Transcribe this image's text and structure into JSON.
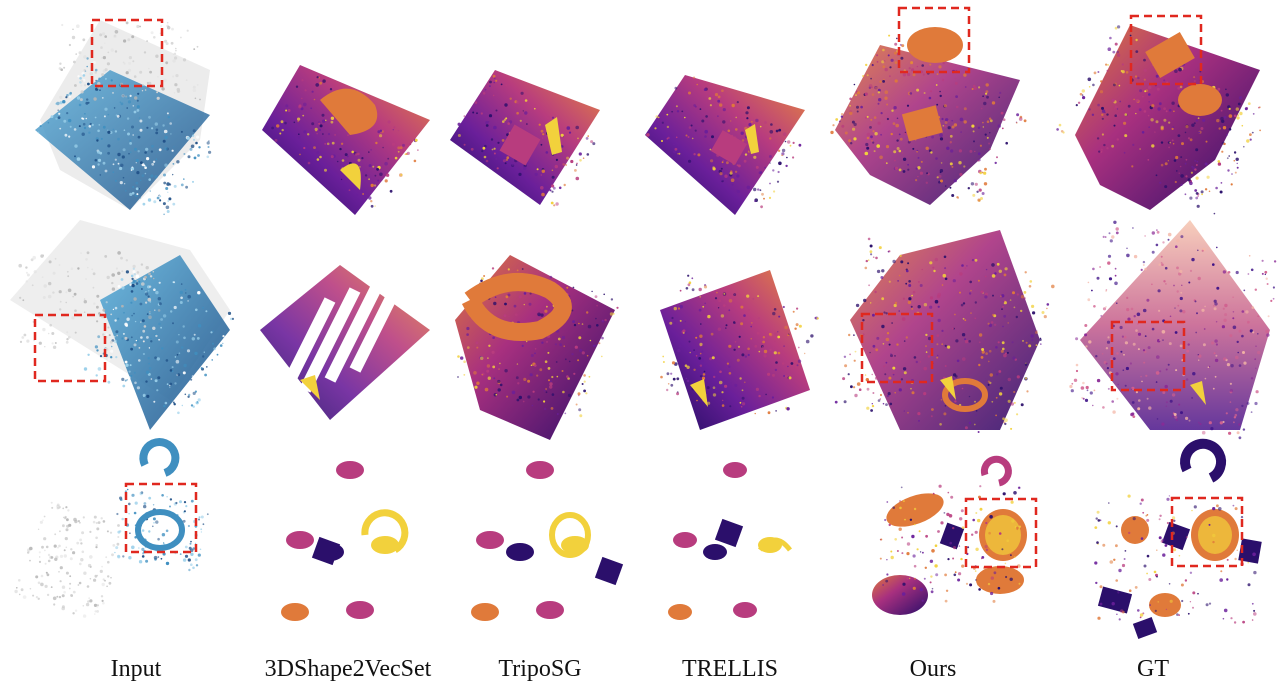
{
  "figure": {
    "columns": [
      {
        "key": "input",
        "label": "Input"
      },
      {
        "key": "vecset",
        "label": "3DShape2VecSet"
      },
      {
        "key": "triposg",
        "label": "TripoSG"
      },
      {
        "key": "trellis",
        "label": "TRELLIS"
      },
      {
        "key": "ours",
        "label": "Ours"
      },
      {
        "key": "gt",
        "label": "GT"
      }
    ],
    "rows": 3,
    "colors": {
      "input_gray": "#c8c8c8",
      "input_blue": "#3f8fc0",
      "input_dark_blue": "#1e4f86",
      "plasma_dark": "#2b0f6b",
      "plasma_purple": "#6a1f9a",
      "plasma_magenta": "#b83c7e",
      "plasma_orange": "#e07a3a",
      "plasma_yellow": "#f2d13c",
      "highlight_box": "#e0281f"
    }
  }
}
